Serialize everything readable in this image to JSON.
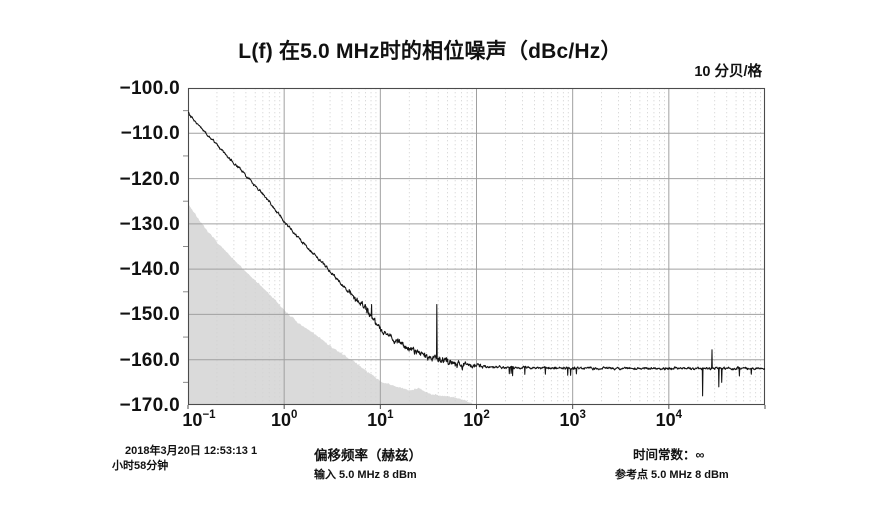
{
  "title": "L(f) 在5.0 MHz时的相位噪声（dBc/Hz）",
  "scale_note": "10 分贝/格",
  "footer": {
    "timestamp_line1": "2018年3月20日 12:53:13 1",
    "timestamp_line2": "小时58分钟",
    "xaxis_label": "偏移频率（赫兹）",
    "input_note": "输入 5.0 MHz 8 dBm",
    "time_constant": "时间常数：∞",
    "reference_note": "参考点 5.0 MHz 8 dBm"
  },
  "chart_data": {
    "type": "line",
    "title": "L(f) 在5.0 MHz时的相位噪声（dBc/Hz）",
    "xlabel": "偏移频率（赫兹）",
    "ylabel": "dBc/Hz",
    "x_scale": "log",
    "x_range_hz": [
      0.1,
      100000
    ],
    "x_tick_exponents": [
      -1,
      0,
      1,
      2,
      3,
      4
    ],
    "y_range": [
      -170,
      -100
    ],
    "y_ticks": [
      -100,
      -110,
      -120,
      -130,
      -140,
      -150,
      -160,
      -170
    ],
    "db_per_div": 10,
    "grid": true,
    "legend": "none",
    "series": [
      {
        "name": "phase-noise-trace",
        "color": "#141414",
        "points_hz_dbc": [
          [
            0.1,
            -105.5
          ],
          [
            0.15,
            -109.8
          ],
          [
            0.2,
            -112.5
          ],
          [
            0.3,
            -116.5
          ],
          [
            0.5,
            -121.5
          ],
          [
            0.7,
            -125.0
          ],
          [
            1,
            -129.5
          ],
          [
            1.5,
            -133.8
          ],
          [
            2,
            -136.5
          ],
          [
            3,
            -140.5
          ],
          [
            5,
            -145.5
          ],
          [
            7,
            -148.5
          ],
          [
            10,
            -153.2
          ],
          [
            15,
            -156.0
          ],
          [
            20,
            -157.5
          ],
          [
            30,
            -159.3
          ],
          [
            40,
            -159.9
          ],
          [
            60,
            -160.7
          ],
          [
            80,
            -161.1
          ],
          [
            100,
            -161.4
          ],
          [
            200,
            -161.7
          ],
          [
            500,
            -161.8
          ],
          [
            1000,
            -161.8
          ],
          [
            3000,
            -161.9
          ],
          [
            10000,
            -161.9
          ],
          [
            30000,
            -161.9
          ],
          [
            100000,
            -162.0
          ]
        ],
        "spurs_hz_dbc": [
          [
            8.1,
            -147.8
          ],
          [
            38.6,
            -147.8
          ],
          [
            230,
            -163.0
          ],
          [
            520,
            -163.2
          ],
          [
            22500,
            -168.0
          ],
          [
            28000,
            -157.8
          ],
          [
            33000,
            -166.0
          ],
          [
            35500,
            -165.0
          ],
          [
            54000,
            -163.6
          ],
          [
            72000,
            -163.2
          ]
        ]
      },
      {
        "name": "measurement-noise-floor",
        "style": "filled-area",
        "color": "#dadada",
        "points_hz_dbc": [
          [
            0.1,
            -125.5
          ],
          [
            0.15,
            -131
          ],
          [
            0.2,
            -134
          ],
          [
            0.3,
            -138
          ],
          [
            0.5,
            -142.5
          ],
          [
            0.7,
            -145.5
          ],
          [
            1,
            -149
          ],
          [
            1.5,
            -152.5
          ],
          [
            2,
            -154
          ],
          [
            3,
            -157
          ],
          [
            5,
            -160
          ],
          [
            7,
            -162.3
          ],
          [
            10,
            -164.8
          ],
          [
            15,
            -166
          ],
          [
            20,
            -166.8
          ],
          [
            25,
            -166.2
          ],
          [
            30,
            -167.3
          ],
          [
            40,
            -167.8
          ],
          [
            60,
            -168.3
          ],
          [
            80,
            -169.2
          ],
          [
            100,
            -170
          ],
          [
            140,
            -171.5
          ]
        ]
      }
    ]
  }
}
